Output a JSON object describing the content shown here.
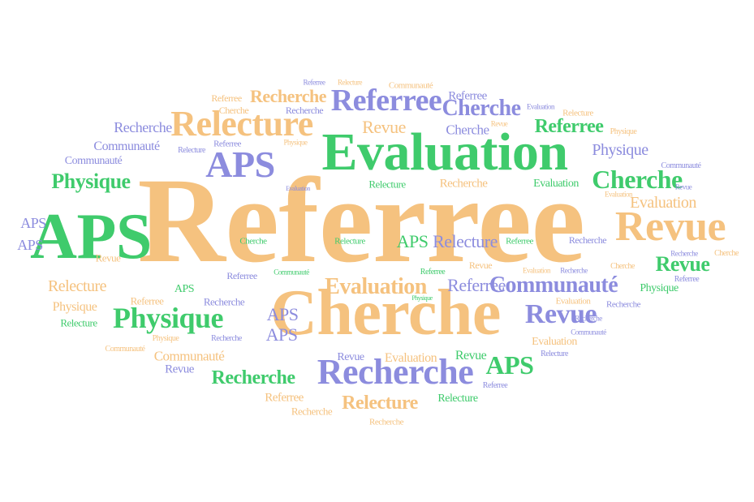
{
  "colors": {
    "orange": "#f5c27f",
    "green": "#3fcb6c",
    "purple": "#8c8cde",
    "background": "#ffffff"
  },
  "words": [
    "Referree",
    "Cherche",
    "Evaluation",
    "APS",
    "Relecture",
    "Revue",
    "Physique",
    "Recherche",
    "Communauté"
  ],
  "word_cloud": {
    "w1": "Referree",
    "w2": "Cherche",
    "w3": "Evaluation",
    "w4": "APS",
    "w5": "APS",
    "w6": "Relecture",
    "w7": "Revue",
    "w8": "Physique",
    "w9": "Recherche",
    "w10": "Referree",
    "w11": "Cherche",
    "w12": "Cherche",
    "w13": "Communauté",
    "w14": "Revue",
    "w15": "Evaluation",
    "w16": "Recherche",
    "w17": "Relecture",
    "w18": "APS",
    "w19": "Referree",
    "w20": "Revue",
    "w21": "Physique",
    "w22": "Recherche",
    "w23": "Recherche",
    "w24": "Communauté",
    "w25": "Cherche",
    "w26": "Communauté",
    "w27": "Physique",
    "w28": "APS",
    "w29": "APS",
    "w30": "Relecture",
    "w31": "Physique",
    "w32": "Relecture",
    "w33": "Revue",
    "w34": "Referree",
    "w35": "Evaluation",
    "w36": "APS",
    "w37": "APS",
    "w38": "Recherche",
    "w39": "Revue",
    "w40": "Communauté",
    "w41": "Referree",
    "w42": "Revue",
    "w43": "Relecture",
    "w44": "Recherche",
    "w45": "APS",
    "w46": "Revue",
    "w47": "Evaluation",
    "w48": "APS",
    "w49": "Relecture",
    "w50": "Referree",
    "w51": "Recherche",
    "w52": "Revue",
    "w53": "Referree",
    "w54": "Relecture",
    "w55": "Recherche",
    "w56": "Evaluation",
    "w57": "Referree",
    "w58": "Cherche",
    "w59": "Recherche",
    "w60": "Referree",
    "w61": "Relecture",
    "w62": "Communauté",
    "w63": "Evaluation",
    "w64": "Relecture",
    "w65": "Revue",
    "w66": "Physique",
    "w67": "Relecture",
    "w68": "Referree",
    "w69": "Physique",
    "w70": "Evaluation",
    "w71": "Communauté",
    "w72": "Revue",
    "w73": "Cherche",
    "w74": "Recherche",
    "w75": "Referree",
    "w76": "Physique",
    "w77": "Recherche",
    "w78": "Recherche",
    "w79": "Evaluation",
    "w80": "Cherche",
    "w81": "Relecture",
    "w82": "Referree",
    "w83": "Referree",
    "w84": "Communauté",
    "w85": "Referree",
    "w86": "Revue",
    "w87": "Evaluation",
    "w88": "Recherche",
    "w89": "Cherche",
    "w90": "Physique",
    "w91": "Evaluation",
    "w92": "Recherche",
    "w93": "Communauté",
    "w94": "Evaluation",
    "w95": "Relecture",
    "w96": "Referree",
    "w97": "Communauté",
    "w98": "Physique",
    "w99": "Recherche"
  }
}
